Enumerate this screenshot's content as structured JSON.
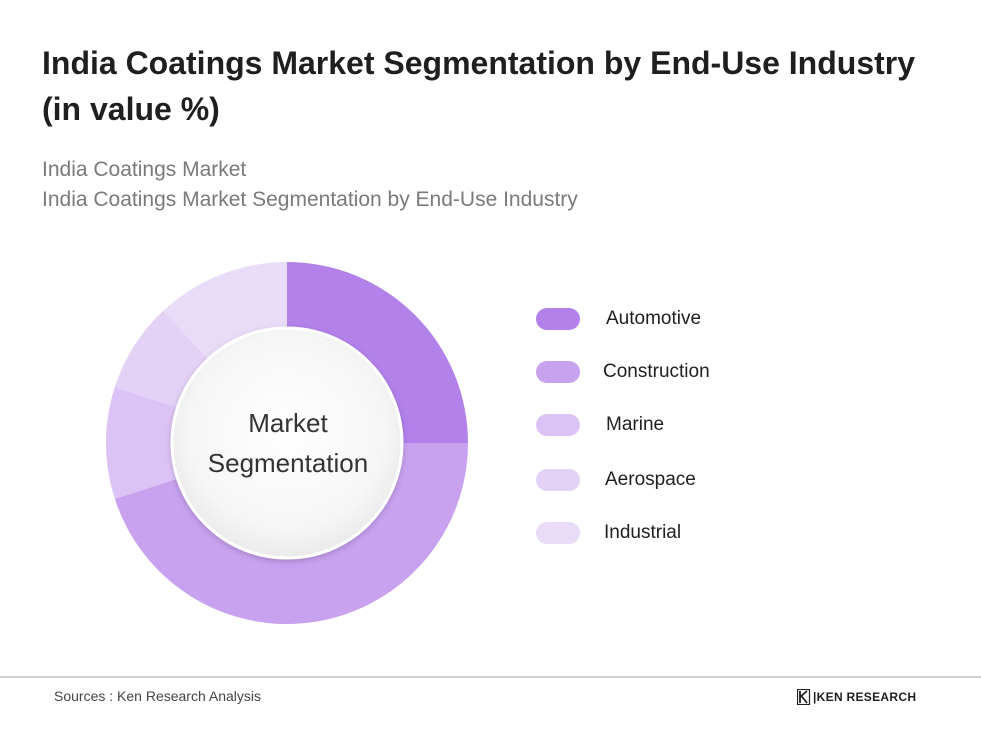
{
  "title": "India Coatings Market Segmentation by End-Use Industry (in value %)",
  "subtitle_lines": [
    "India Coatings Market",
    "India Coatings Market Segmentation by End-Use Industry"
  ],
  "center_label": [
    "Market",
    "Segmentation"
  ],
  "chart_data": {
    "type": "pie",
    "title": "India Coatings Market Segmentation by End-Use Industry (in value %)",
    "series": [
      {
        "name": "Automotive",
        "value": 25,
        "color": "#b281ea"
      },
      {
        "name": "Construction",
        "value": 45,
        "color": "#c8a1ef"
      },
      {
        "name": "Marine",
        "value": 10,
        "color": "#dcc3f5"
      },
      {
        "name": "Aerospace",
        "value": 8,
        "color": "#e3d1f6"
      },
      {
        "name": "Industrial",
        "value": 12,
        "color": "#e9dcf8"
      }
    ],
    "legend_position": "right",
    "donut": true
  },
  "footer": {
    "source": "Sources : Ken Research Analysis",
    "brand": "KEN RESEARCH"
  },
  "colors": {
    "title": "#1f1f1f",
    "subtitle": "#7a7a7a",
    "divider": "#cfcfcf"
  }
}
